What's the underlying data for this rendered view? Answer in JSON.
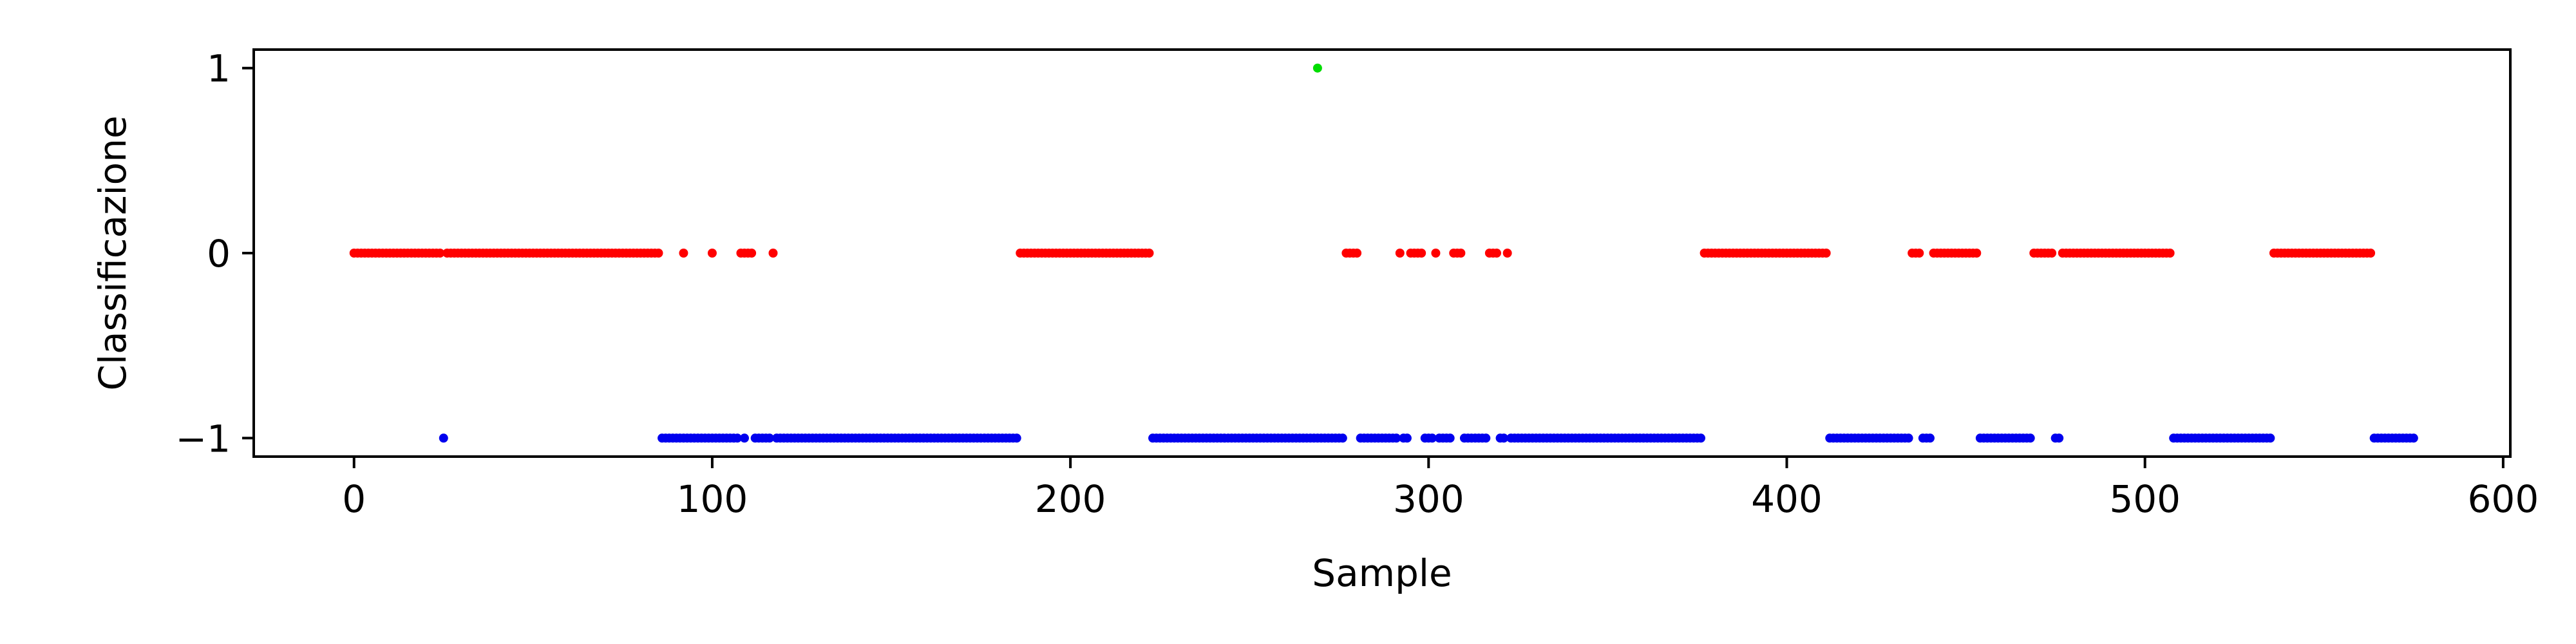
{
  "chart_data": {
    "type": "scatter",
    "title": "",
    "xlabel": "Sample",
    "ylabel": "Classificazione",
    "xlim": [
      -28,
      602
    ],
    "ylim": [
      -1.1,
      1.1
    ],
    "x_ticks": [
      {
        "value": 0,
        "label": "0"
      },
      {
        "value": 100,
        "label": "100"
      },
      {
        "value": 200,
        "label": "200"
      },
      {
        "value": 300,
        "label": "300"
      },
      {
        "value": 400,
        "label": "400"
      },
      {
        "value": 500,
        "label": "500"
      },
      {
        "value": 600,
        "label": "600"
      }
    ],
    "y_ticks": [
      {
        "value": -1,
        "label": "−1"
      },
      {
        "value": 0,
        "label": "0"
      },
      {
        "value": 1,
        "label": "1"
      }
    ],
    "grid": false,
    "legend": "none",
    "colors": {
      "class_1": "#00dd00",
      "class_0": "#ff0000",
      "class_minus_1": "#0000ee"
    },
    "series": [
      {
        "y": 1,
        "color": "#00dd00",
        "x_ranges": [
          [
            269,
            269
          ]
        ]
      },
      {
        "y": 0,
        "color": "#ff0000",
        "x_ranges": [
          [
            0,
            24
          ],
          [
            26,
            85
          ],
          [
            92,
            92
          ],
          [
            100,
            100
          ],
          [
            108,
            111
          ],
          [
            117,
            117
          ],
          [
            186,
            222
          ],
          [
            277,
            280
          ],
          [
            292,
            292
          ],
          [
            295,
            298
          ],
          [
            302,
            302
          ],
          [
            307,
            309
          ],
          [
            317,
            319
          ],
          [
            322,
            322
          ],
          [
            377,
            411
          ],
          [
            435,
            437
          ],
          [
            441,
            453
          ],
          [
            469,
            474
          ],
          [
            477,
            507
          ],
          [
            536,
            563
          ]
        ]
      },
      {
        "y": -1,
        "color": "#0000ee",
        "x_ranges": [
          [
            25,
            25
          ],
          [
            86,
            107
          ],
          [
            109,
            109
          ],
          [
            112,
            116
          ],
          [
            118,
            185
          ],
          [
            223,
            276
          ],
          [
            281,
            291
          ],
          [
            293,
            294
          ],
          [
            299,
            301
          ],
          [
            303,
            306
          ],
          [
            310,
            316
          ],
          [
            320,
            321
          ],
          [
            323,
            376
          ],
          [
            412,
            434
          ],
          [
            438,
            440
          ],
          [
            454,
            468
          ],
          [
            475,
            476
          ],
          [
            508,
            535
          ],
          [
            564,
            575
          ]
        ]
      }
    ]
  }
}
